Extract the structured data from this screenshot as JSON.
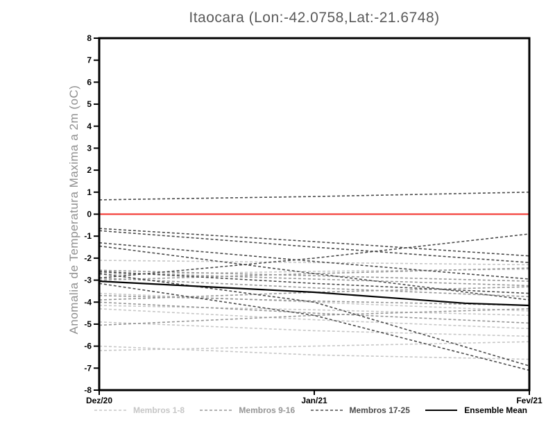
{
  "chart_data": {
    "type": "line",
    "title": "Itaocara (Lon:-42.0758,Lat:-21.6748)",
    "ylabel": "Anomalia de Temperatura Maxima a 2m (oC)",
    "xlabel": "",
    "ylim": [
      -8,
      8
    ],
    "ytick_interval": 1,
    "y_tick_labels": [
      "8",
      "7",
      "6",
      "5",
      "4",
      "3",
      "2",
      "1",
      "0",
      "-1",
      "-2",
      "-3",
      "-4",
      "-5",
      "-6",
      "-7",
      "-8"
    ],
    "x_range": [
      0,
      1
    ],
    "x_tick_positions": [
      0,
      0.5,
      1
    ],
    "x_tick_labels": [
      "Dez/20",
      "Jan/21",
      "Fev/21"
    ],
    "grid": false,
    "legend_position": "bottom",
    "zero_line_value": 0,
    "colors": {
      "zero_line": "#f4423c",
      "frame": "#000000",
      "title": "#5a5a5a",
      "axis_label": "#8f8f8f",
      "tick_label": "#000000"
    },
    "groups": [
      {
        "name": "Membros 1-8",
        "color": "#c6c6c6",
        "dash": true
      },
      {
        "name": "Membros 9-16",
        "color": "#959595",
        "dash": true
      },
      {
        "name": "Membros 17-25",
        "color": "#4a4a4a",
        "dash": true
      },
      {
        "name": "Ensemble Mean",
        "color": "#000000",
        "dash": false
      }
    ],
    "series": [
      {
        "group": 0,
        "x": [
          0,
          0.5,
          1
        ],
        "values": [
          -2.1,
          -2.2,
          -2.3
        ]
      },
      {
        "group": 0,
        "x": [
          0,
          0.5,
          1
        ],
        "values": [
          -2.75,
          -2.6,
          -2.5
        ]
      },
      {
        "group": 0,
        "x": [
          0,
          0.5,
          1
        ],
        "values": [
          -3.6,
          -4.0,
          -4.4
        ]
      },
      {
        "group": 0,
        "x": [
          0,
          0.5,
          1
        ],
        "values": [
          -4.15,
          -4.35,
          -4.6
        ]
      },
      {
        "group": 0,
        "x": [
          0,
          0.5,
          1
        ],
        "values": [
          -4.3,
          -4.8,
          -5.2
        ]
      },
      {
        "group": 0,
        "x": [
          0,
          0.5,
          1
        ],
        "values": [
          -4.9,
          -5.3,
          -5.55
        ]
      },
      {
        "group": 0,
        "x": [
          0,
          0.5,
          1
        ],
        "values": [
          -6.0,
          -6.4,
          -6.6
        ]
      },
      {
        "group": 0,
        "x": [
          0,
          0.5,
          1
        ],
        "values": [
          -6.2,
          -6.0,
          -5.8
        ]
      },
      {
        "group": 1,
        "x": [
          0,
          0.5,
          1
        ],
        "values": [
          -2.55,
          -2.8,
          -3.05
        ]
      },
      {
        "group": 1,
        "x": [
          0,
          0.5,
          1
        ],
        "values": [
          -2.65,
          -2.95,
          -3.25
        ]
      },
      {
        "group": 1,
        "x": [
          0,
          0.5,
          1
        ],
        "values": [
          -2.9,
          -3.35,
          -3.75
        ]
      },
      {
        "group": 1,
        "x": [
          0,
          0.5,
          1
        ],
        "values": [
          -3.0,
          -2.7,
          -2.45
        ]
      },
      {
        "group": 1,
        "x": [
          0,
          0.5,
          1
        ],
        "values": [
          -3.7,
          -3.95,
          -4.15
        ]
      },
      {
        "group": 1,
        "x": [
          0,
          0.5,
          1
        ],
        "values": [
          -3.9,
          -3.55,
          -3.3
        ]
      },
      {
        "group": 1,
        "x": [
          0,
          0.5,
          1
        ],
        "values": [
          -4.0,
          -4.5,
          -4.95
        ]
      },
      {
        "group": 1,
        "x": [
          0,
          0.5,
          1
        ],
        "values": [
          -5.05,
          -4.6,
          -4.3
        ]
      },
      {
        "group": 2,
        "x": [
          0,
          0.5,
          1
        ],
        "values": [
          0.65,
          0.8,
          1.0
        ]
      },
      {
        "group": 2,
        "x": [
          0,
          0.5,
          1
        ],
        "values": [
          -0.65,
          -1.25,
          -1.9
        ]
      },
      {
        "group": 2,
        "x": [
          0,
          0.5,
          1
        ],
        "values": [
          -0.75,
          -1.5,
          -2.2
        ]
      },
      {
        "group": 2,
        "x": [
          0,
          0.5,
          1
        ],
        "values": [
          -1.3,
          -2.15,
          -2.95
        ]
      },
      {
        "group": 2,
        "x": [
          0,
          0.5,
          1
        ],
        "values": [
          -1.45,
          -2.7,
          -3.9
        ]
      },
      {
        "group": 2,
        "x": [
          0,
          0.5,
          1
        ],
        "values": [
          -2.9,
          -2.0,
          -0.9
        ]
      },
      {
        "group": 2,
        "x": [
          0,
          0.5,
          1
        ],
        "values": [
          -2.6,
          -3.15,
          -3.6
        ]
      },
      {
        "group": 2,
        "x": [
          0,
          0.5,
          1
        ],
        "values": [
          -2.7,
          -4.0,
          -6.9
        ]
      },
      {
        "group": 2,
        "x": [
          0,
          0.5,
          1
        ],
        "values": [
          -3.15,
          -4.6,
          -7.1
        ]
      },
      {
        "group": 3,
        "x": [
          0,
          0.25,
          0.5,
          0.85,
          1
        ],
        "values": [
          -3.05,
          -3.3,
          -3.55,
          -4.05,
          -4.15
        ]
      }
    ]
  }
}
